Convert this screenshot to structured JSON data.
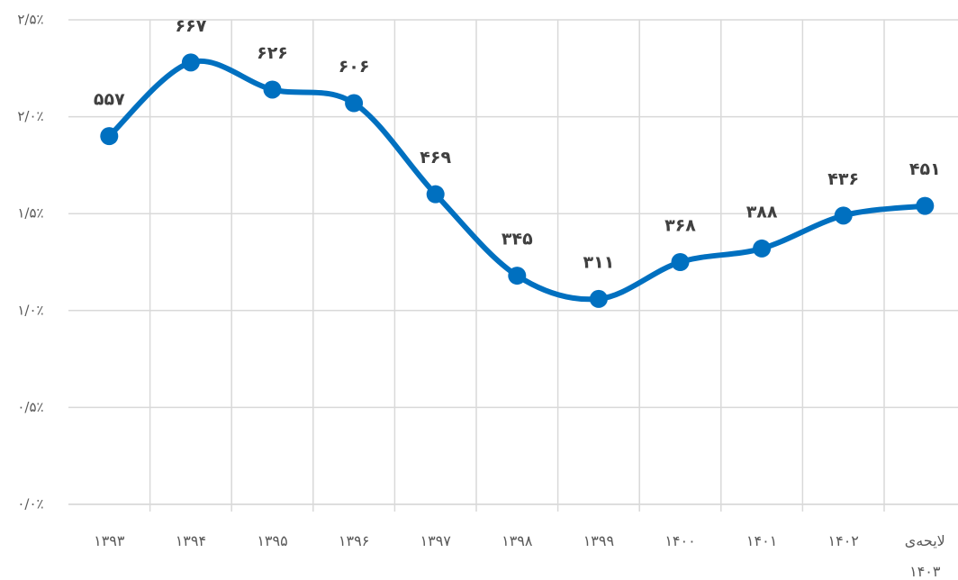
{
  "chart_data": {
    "type": "line",
    "categories": [
      "۱۳۹۳",
      "۱۳۹۴",
      "۱۳۹۵",
      "۱۳۹۶",
      "۱۳۹۷",
      "۱۳۹۸",
      "۱۳۹۹",
      "۱۴۰۰",
      "۱۴۰۱",
      "۱۴۰۲",
      "لایحه‌ی ۱۴۰۳"
    ],
    "series": [
      {
        "color": "#0070c0",
        "values": [
          1.9,
          2.28,
          2.14,
          2.07,
          1.6,
          1.18,
          1.06,
          1.25,
          1.32,
          1.49,
          1.54
        ],
        "point_labels": [
          "۵۵۷",
          "۶۶۷",
          "۶۲۶",
          "۶۰۶",
          "۴۶۹",
          "۳۴۵",
          "۳۱۱",
          "۳۶۸",
          "۳۸۸",
          "۴۳۶",
          "۴۵۱"
        ]
      }
    ],
    "ylim": [
      0,
      2.5
    ],
    "yticks": [
      {
        "value": 0,
        "label": "۰/۰٪"
      },
      {
        "value": 0.5,
        "label": "۰/۵٪"
      },
      {
        "value": 1,
        "label": "۱/۰٪"
      },
      {
        "value": 1.5,
        "label": "۱/۵٪"
      },
      {
        "value": 2,
        "label": "۲/۰٪"
      },
      {
        "value": 2.5,
        "label": "۲/۵٪"
      }
    ],
    "grid": true
  }
}
